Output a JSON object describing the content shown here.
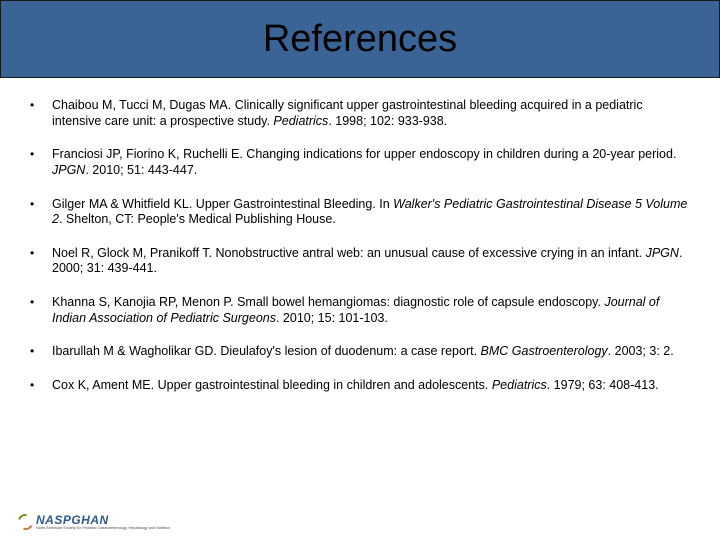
{
  "title": "References",
  "title_bar": {
    "bg": "#3b6496",
    "border": "#1a1a1a",
    "text_color": "#000000",
    "fontsize": 38
  },
  "body": {
    "fontsize": 12.5,
    "line_height": 1.25,
    "text_color": "#000000",
    "bullet_char": "•"
  },
  "references": [
    {
      "pre": "Chaibou M, Tucci M, Dugas MA. Clinically significant upper gastrointestinal bleeding acquired in a pediatric intensive care unit: a prospective study. ",
      "journal": "Pediatrics",
      "post": ". 1998; 102: 933-938."
    },
    {
      "pre": "Franciosi JP, Fiorino K, Ruchelli E. Changing indications for upper endoscopy in children during a 20-year period. ",
      "journal": "JPGN",
      "post": ". 2010; 51: 443-447."
    },
    {
      "pre": "Gilger MA & Whitfield KL. Upper Gastrointestinal Bleeding. In ",
      "journal": "Walker's Pediatric Gastrointestinal Disease 5 Volume 2",
      "post": ". Shelton, CT: People's Medical Publishing House."
    },
    {
      "pre": "Noel R, Glock M, Pranikoff T. Nonobstructive antral web: an unusual cause of excessive crying in an infant. ",
      "journal": "JPGN",
      "post": ". 2000; 31: 439-441."
    },
    {
      "pre": "Khanna S, Kanojia RP, Menon P. Small bowel hemangiomas: diagnostic role of capsule endoscopy. ",
      "journal": "Journal of Indian Association of Pediatric Surgeons",
      "post": ". 2010; 15: 101-103."
    },
    {
      "pre": "Ibarullah M & Wagholikar GD. Dieulafoy's lesion of duodenum: a case report. ",
      "journal": "BMC Gastroenterology",
      "post": ". 2003; 3: 2."
    },
    {
      "pre": "Cox K, Ament ME. Upper gastrointestinal bleeding in children and adolescents. ",
      "journal": "Pediatrics",
      "post": ". 1979; 63: 408-413."
    }
  ],
  "logo": {
    "main": "NASPGHAN",
    "sub": "North American Society for Pediatric Gastroenterology, Hepatology and Nutrition",
    "main_color": "#2f5a8a",
    "swoosh_colors": [
      "#6b8e23",
      "#c08040"
    ]
  }
}
